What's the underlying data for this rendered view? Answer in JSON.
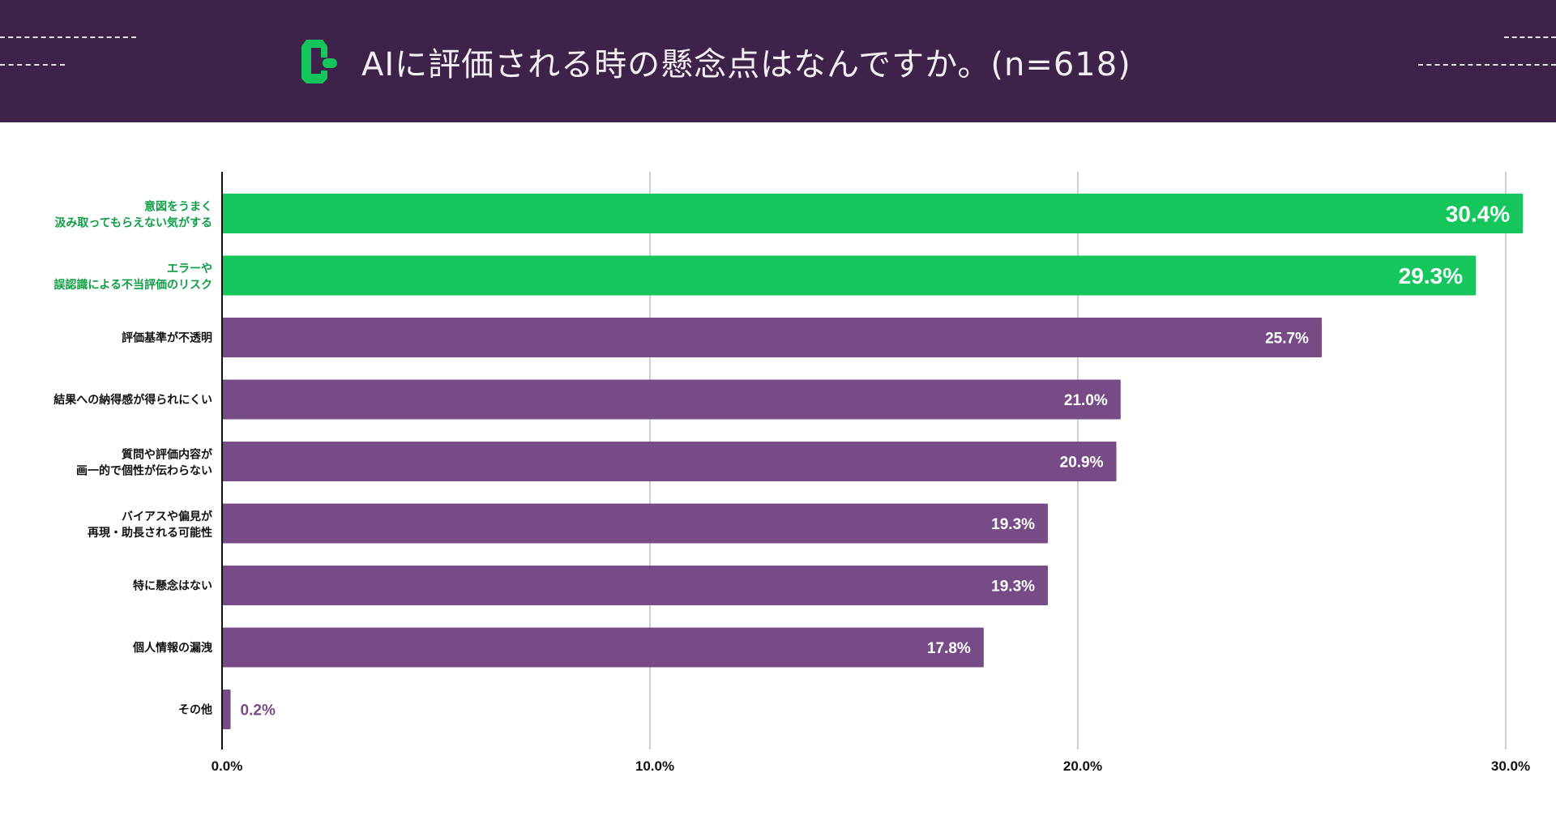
{
  "header": {
    "title": "AIに評価される時の懸念点はなんですか。(n=618)",
    "logo_icon": "brand-logo-icon"
  },
  "colors": {
    "header_bg": "#3e2249",
    "highlight": "#15c65c",
    "bar": "#774c86",
    "highlight_text": "#0f9e46"
  },
  "chart_data": {
    "type": "bar",
    "orientation": "horizontal",
    "title": "AIに評価される時の懸念点はなんですか。(n=618)",
    "categories": [
      [
        "意図をうまく",
        "汲み取ってもらえない気がする"
      ],
      [
        "エラーや",
        "誤認識による不当評価のリスク"
      ],
      [
        "評価基準が不透明"
      ],
      [
        "結果への納得感が得られにくい"
      ],
      [
        "質問や評価内容が",
        "画一的で個性が伝わらない"
      ],
      [
        "バイアスや偏見が",
        "再現・助長される可能性"
      ],
      [
        "特に懸念はない"
      ],
      [
        "個人情報の漏洩"
      ],
      [
        "その他"
      ]
    ],
    "values": [
      30.4,
      29.3,
      25.7,
      21.0,
      20.9,
      19.3,
      19.3,
      17.8,
      0.2
    ],
    "labels": [
      "30.4%",
      "29.3%",
      "25.7%",
      "21.0%",
      "20.9%",
      "19.3%",
      "19.3%",
      "17.8%",
      "0.2%"
    ],
    "highlighted": [
      true,
      true,
      false,
      false,
      false,
      false,
      false,
      false,
      false
    ],
    "xlim": [
      0,
      30
    ],
    "xticks": [
      0,
      10,
      20,
      30
    ],
    "xtick_labels": [
      "0.0%",
      "10.0%",
      "20.0%",
      "30.0%"
    ],
    "grid": true,
    "xlabel": "",
    "ylabel": ""
  }
}
